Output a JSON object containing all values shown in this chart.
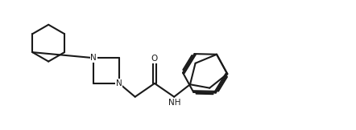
{
  "background_color": "#ffffff",
  "line_color": "#1a1a1a",
  "line_width": 1.5,
  "figsize": [
    4.42,
    1.62
  ],
  "dpi": 100,
  "xlim": [
    0,
    10
  ],
  "ylim": [
    0,
    3.6
  ]
}
